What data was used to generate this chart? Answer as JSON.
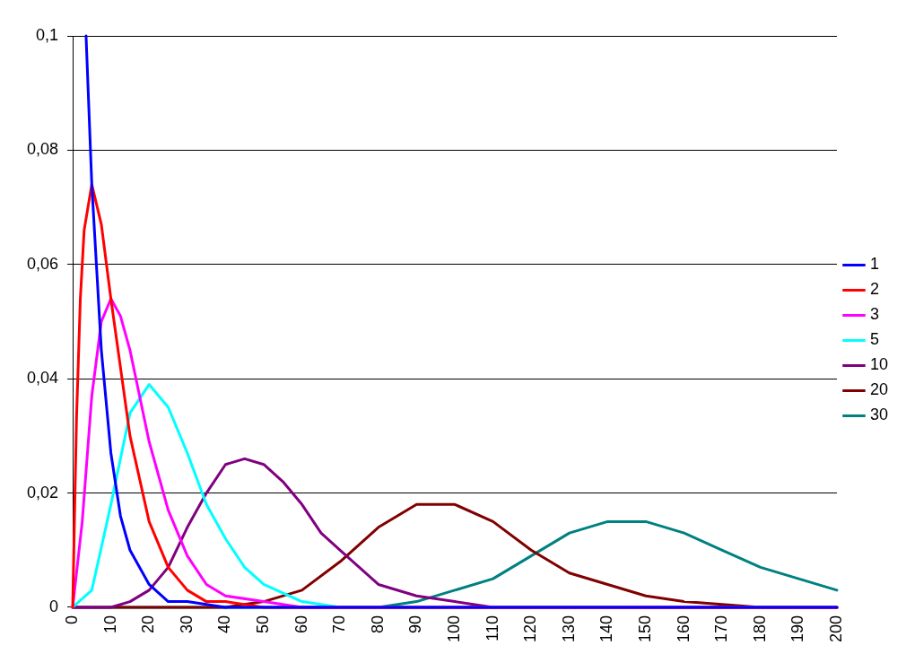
{
  "chart_data": {
    "type": "line",
    "marker": "none",
    "line_style": "solid",
    "grid": "y",
    "legend": "right",
    "xlim": [
      0,
      200
    ],
    "xticks": [
      0,
      10,
      20,
      30,
      40,
      50,
      60,
      70,
      80,
      90,
      100,
      110,
      120,
      130,
      140,
      150,
      160,
      170,
      180,
      190,
      200
    ],
    "ylim": [
      0,
      0.1
    ],
    "yticks": [
      {
        "value": 0,
        "label": "0"
      },
      {
        "value": 0.02,
        "label": "0,02"
      },
      {
        "value": 0.04,
        "label": "0,04"
      },
      {
        "value": 0.06,
        "label": "0,06"
      },
      {
        "value": 0.08,
        "label": "0,08"
      },
      {
        "value": 0.1,
        "label": "0,1"
      }
    ],
    "series": [
      {
        "name": "1",
        "color": "#0000ff",
        "x": [
          3.5,
          5,
          7.5,
          10,
          12.5,
          15,
          20,
          25,
          30,
          40,
          60,
          200
        ],
        "values": [
          0.1,
          0.074,
          0.045,
          0.027,
          0.016,
          0.01,
          0.004,
          0.001,
          0.001,
          0,
          0,
          0
        ]
      },
      {
        "name": "2",
        "color": "#ff0000",
        "x": [
          0,
          1,
          2,
          3,
          5,
          7.5,
          10,
          15,
          20,
          25,
          30,
          35,
          40,
          50,
          200
        ],
        "values": [
          0,
          0.033,
          0.054,
          0.066,
          0.074,
          0.067,
          0.054,
          0.03,
          0.015,
          0.007,
          0.003,
          0.001,
          0.001,
          0,
          0
        ]
      },
      {
        "name": "3",
        "color": "#ff00ff",
        "x": [
          0,
          2.5,
          5,
          7.5,
          10,
          12.5,
          15,
          20,
          25,
          30,
          35,
          40,
          50,
          60,
          200
        ],
        "values": [
          0,
          0.015,
          0.037,
          0.05,
          0.054,
          0.051,
          0.045,
          0.029,
          0.017,
          0.009,
          0.004,
          0.002,
          0.001,
          0,
          0
        ]
      },
      {
        "name": "5",
        "color": "#00ffff",
        "x": [
          0,
          5,
          10,
          15,
          20,
          25,
          30,
          35,
          40,
          45,
          50,
          60,
          70,
          80,
          200
        ],
        "values": [
          0,
          0.003,
          0.018,
          0.034,
          0.039,
          0.035,
          0.027,
          0.018,
          0.012,
          0.007,
          0.004,
          0.001,
          0,
          0,
          0
        ]
      },
      {
        "name": "10",
        "color": "#800080",
        "x": [
          0,
          10,
          15,
          20,
          25,
          30,
          35,
          40,
          45,
          50,
          55,
          60,
          65,
          70,
          80,
          90,
          100,
          110,
          200
        ],
        "values": [
          0,
          0,
          0.001,
          0.003,
          0.007,
          0.014,
          0.02,
          0.025,
          0.026,
          0.025,
          0.022,
          0.018,
          0.013,
          0.01,
          0.004,
          0.002,
          0.001,
          0,
          0
        ]
      },
      {
        "name": "20",
        "color": "#800000",
        "x": [
          0,
          40,
          50,
          60,
          70,
          80,
          90,
          95,
          100,
          110,
          120,
          130,
          140,
          150,
          160,
          180,
          200
        ],
        "values": [
          0,
          0,
          0.001,
          0.003,
          0.008,
          0.014,
          0.018,
          0.018,
          0.018,
          0.015,
          0.01,
          0.006,
          0.004,
          0.002,
          0.001,
          0,
          0
        ]
      },
      {
        "name": "30",
        "color": "#008080",
        "x": [
          0,
          70,
          80,
          90,
          100,
          110,
          120,
          130,
          140,
          145,
          150,
          160,
          170,
          180,
          190,
          200
        ],
        "values": [
          0,
          0,
          0,
          0.001,
          0.003,
          0.005,
          0.009,
          0.013,
          0.015,
          0.015,
          0.015,
          0.013,
          0.01,
          0.007,
          0.005,
          0.003
        ]
      }
    ]
  }
}
